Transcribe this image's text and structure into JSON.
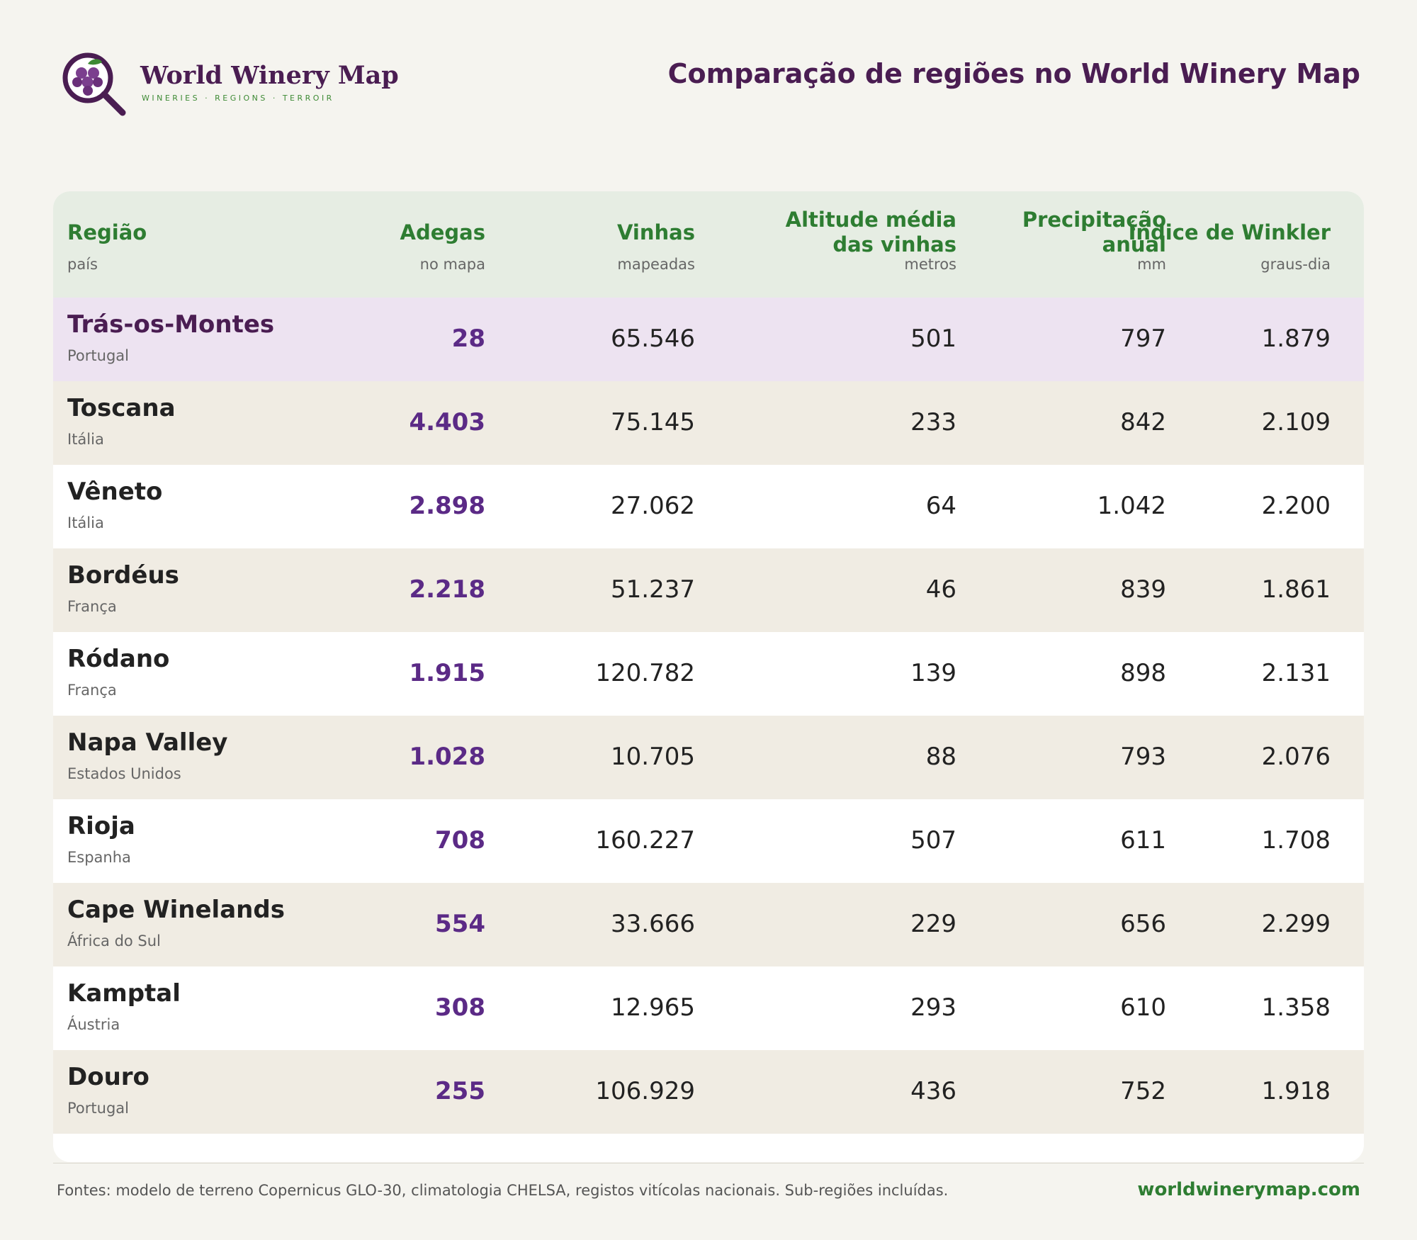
{
  "header": {
    "brand_name": "World Winery Map",
    "brand_tagline": "WINERIES · REGIONS · TERROIR",
    "title": "Comparação de regiões no World Winery Map"
  },
  "colors": {
    "brand_purple": "#4a1d52",
    "accent_green": "#2e7d32",
    "winery_count_purple": "#5b2a86",
    "highlight_row": "#ede3f1"
  },
  "table": {
    "columns": [
      {
        "label_lines": [
          "Região"
        ],
        "unit": "país"
      },
      {
        "label_lines": [
          "Adegas"
        ],
        "unit": "no mapa"
      },
      {
        "label_lines": [
          "Vinhas"
        ],
        "unit": "mapeadas"
      },
      {
        "label_lines": [
          "Altitude média",
          "das vinhas"
        ],
        "unit": "metros"
      },
      {
        "label_lines": [
          "Precipitação",
          "anual"
        ],
        "unit": "mm"
      },
      {
        "label_lines": [
          "Índice de Winkler"
        ],
        "unit": "graus-dia"
      }
    ],
    "rows": [
      {
        "region": "Trás-os-Montes",
        "country": "Portugal",
        "wineries": "28",
        "vineyards": "65.546",
        "altitude": "501",
        "precip": "797",
        "winkler": "1.879"
      },
      {
        "region": "Toscana",
        "country": "Itália",
        "wineries": "4.403",
        "vineyards": "75.145",
        "altitude": "233",
        "precip": "842",
        "winkler": "2.109"
      },
      {
        "region": "Vêneto",
        "country": "Itália",
        "wineries": "2.898",
        "vineyards": "27.062",
        "altitude": "64",
        "precip": "1.042",
        "winkler": "2.200"
      },
      {
        "region": "Bordéus",
        "country": "França",
        "wineries": "2.218",
        "vineyards": "51.237",
        "altitude": "46",
        "precip": "839",
        "winkler": "1.861"
      },
      {
        "region": "Ródano",
        "country": "França",
        "wineries": "1.915",
        "vineyards": "120.782",
        "altitude": "139",
        "precip": "898",
        "winkler": "2.131"
      },
      {
        "region": "Napa Valley",
        "country": "Estados Unidos",
        "wineries": "1.028",
        "vineyards": "10.705",
        "altitude": "88",
        "precip": "793",
        "winkler": "2.076"
      },
      {
        "region": "Rioja",
        "country": "Espanha",
        "wineries": "708",
        "vineyards": "160.227",
        "altitude": "507",
        "precip": "611",
        "winkler": "1.708"
      },
      {
        "region": "Cape Winelands",
        "country": "África do Sul",
        "wineries": "554",
        "vineyards": "33.666",
        "altitude": "229",
        "precip": "656",
        "winkler": "2.299"
      },
      {
        "region": "Kamptal",
        "country": "Áustria",
        "wineries": "308",
        "vineyards": "12.965",
        "altitude": "293",
        "precip": "610",
        "winkler": "1.358"
      },
      {
        "region": "Douro",
        "country": "Portugal",
        "wineries": "255",
        "vineyards": "106.929",
        "altitude": "436",
        "precip": "752",
        "winkler": "1.918"
      }
    ]
  },
  "footer": {
    "sources": "Fontes: modelo de terreno Copernicus GLO-30, climatologia CHELSA, registos vitícolas nacionais. Sub-regiões incluídas.",
    "site": "worldwinerymap.com"
  }
}
